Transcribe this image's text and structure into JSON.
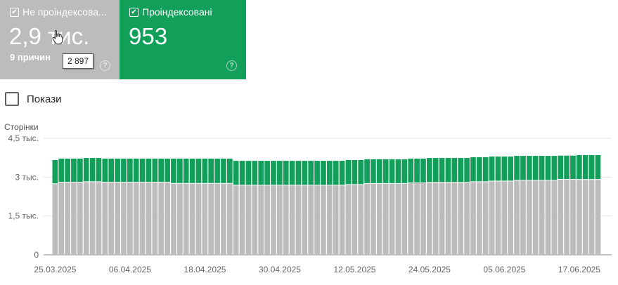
{
  "cards": [
    {
      "label": "Не проіндексова...",
      "value": "2,9 тис.",
      "sub": "9 причин",
      "checked": true,
      "color": "#bcbcbc"
    },
    {
      "label": "Проіндексовані",
      "value": "953",
      "checked": true,
      "color": "#119f5a"
    }
  ],
  "tooltip": "2 897",
  "impressions_label": "Покази",
  "chart_data": {
    "type": "bar",
    "stacked": true,
    "ylabel": "Сторінки",
    "ylim": [
      0,
      4500
    ],
    "yticks": [
      {
        "v": 0,
        "label": "0"
      },
      {
        "v": 1500,
        "label": "1,5 тыс."
      },
      {
        "v": 3000,
        "label": "3 тыс."
      },
      {
        "v": 4500,
        "label": "4,5 тыс."
      }
    ],
    "start_date": "25.03.2025",
    "xtick_labels": [
      "25.03.2025",
      "06.04.2025",
      "18.04.2025",
      "30.04.2025",
      "12.05.2025",
      "24.05.2025",
      "05.06.2025",
      "17.06.2025"
    ],
    "xtick_every_days": 12,
    "series": [
      {
        "name": "Не проіндексовані",
        "color": "#bcbcbc",
        "runs": [
          [
            2730,
            1
          ],
          [
            2790,
            4
          ],
          [
            2810,
            3
          ],
          [
            2790,
            11
          ],
          [
            2745,
            10
          ],
          [
            2675,
            18
          ],
          [
            2700,
            3
          ],
          [
            2740,
            7
          ],
          [
            2765,
            3
          ],
          [
            2785,
            7
          ],
          [
            2810,
            3
          ],
          [
            2835,
            4
          ],
          [
            2865,
            7
          ],
          [
            2900,
            3
          ],
          [
            2897,
            4
          ]
        ]
      },
      {
        "name": "Проіндексовані",
        "color": "#119f5a",
        "runs": [
          [
            930,
            1
          ],
          [
            925,
            4
          ],
          [
            930,
            3
          ],
          [
            925,
            11
          ],
          [
            970,
            10
          ],
          [
            955,
            18
          ],
          [
            960,
            3
          ],
          [
            950,
            7
          ],
          [
            950,
            3
          ],
          [
            955,
            7
          ],
          [
            960,
            3
          ],
          [
            960,
            4
          ],
          [
            955,
            7
          ],
          [
            930,
            3
          ],
          [
            953,
            4
          ]
        ]
      }
    ]
  }
}
